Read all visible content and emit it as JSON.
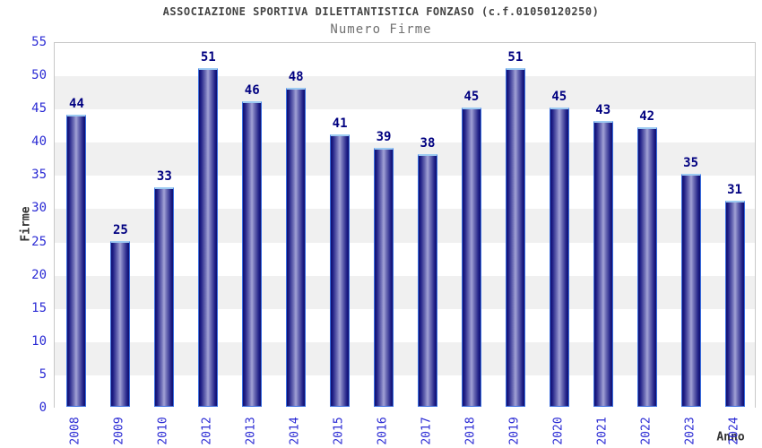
{
  "header": {
    "title": "ASSOCIAZIONE SPORTIVA DILETTANTISTICA FONZASO (c.f.01050120250)",
    "subtitle": "Numero Firme"
  },
  "chart_data": {
    "type": "bar",
    "title": "ASSOCIAZIONE SPORTIVA DILETTANTISTICA FONZASO (c.f.01050120250)",
    "subtitle": "Numero Firme",
    "categories": [
      "2008",
      "2009",
      "2010",
      "2012",
      "2013",
      "2014",
      "2015",
      "2016",
      "2017",
      "2018",
      "2019",
      "2020",
      "2021",
      "2022",
      "2023",
      "2024"
    ],
    "values": [
      44,
      25,
      33,
      51,
      46,
      48,
      41,
      39,
      38,
      45,
      51,
      45,
      43,
      42,
      35,
      31
    ],
    "xlabel": "Anno",
    "ylabel": "Firme",
    "ylim": [
      0,
      55
    ],
    "yticks": [
      0,
      5,
      10,
      15,
      20,
      25,
      30,
      35,
      40,
      45,
      50,
      55
    ],
    "grid": "alternating horizontal bands every 5 units",
    "legend_position": "none",
    "bar_value_labels_shown": true,
    "note": "year 2011 absent from x axis"
  },
  "colors": {
    "tick_label_blue": "#2b2bd4",
    "value_label_navy": "#000080",
    "bar_gradient_dark": "#10106e",
    "bar_gradient_mid": "#a2a2d6",
    "bar_border_blue": "#3a6ee0",
    "bar_top_cap_lightblue": "#9ccaf2",
    "band_gray": "#f0f0f0",
    "band_white": "#ffffff",
    "plot_border_gray": "#c8c8c8",
    "title_color": "#444444",
    "subtitle_color": "#707070",
    "axis_label_color": "#333333"
  }
}
